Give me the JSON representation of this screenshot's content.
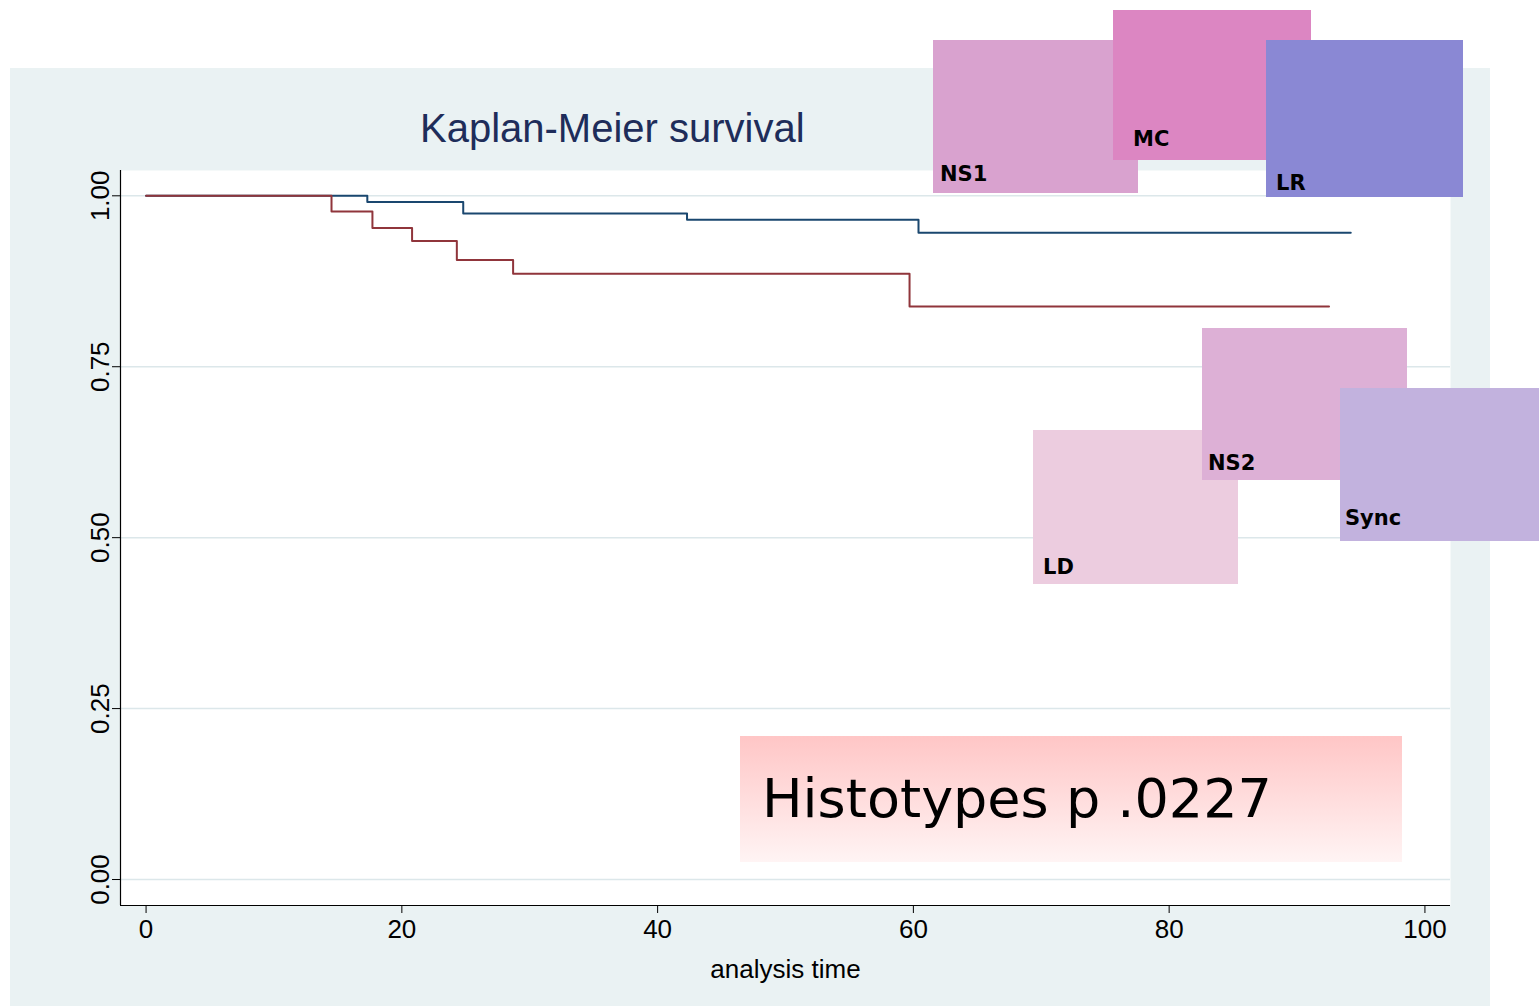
{
  "chart_data": {
    "type": "step",
    "title": "Kaplan-Meier survival",
    "x_label": "analysis time",
    "series": [
      {
        "color": "#1a476f",
        "x": [
          0,
          17.3,
          24.8,
          42.3,
          60.4,
          94.2
        ],
        "values": [
          1,
          0.991,
          0.974,
          0.965,
          0.946,
          0.946
        ]
      },
      {
        "color": "#90353b",
        "x": [
          0,
          14.5,
          17.7,
          20.8,
          24.3,
          28.7,
          59.7,
          92.5
        ],
        "values": [
          1,
          0.977,
          0.953,
          0.934,
          0.906,
          0.886,
          0.838,
          0.838
        ]
      }
    ],
    "xlim": [
      -2,
      102
    ],
    "ylim": [
      -0.038,
      1.037
    ],
    "xticks": [
      0,
      20,
      40,
      60,
      80,
      100
    ],
    "yticks": [
      {
        "value": 0,
        "label": "0.00"
      },
      {
        "value": 0.25,
        "label": "0.25"
      },
      {
        "value": 0.5,
        "label": "0.50"
      },
      {
        "value": 0.75,
        "label": "0.75"
      },
      {
        "value": 1,
        "label": "1.00"
      }
    ],
    "grid": true,
    "annotation": "Histotypes p .0227",
    "image_labels": [
      "NS1",
      "MC",
      "LR",
      "NS2",
      "Sync",
      "LD"
    ]
  }
}
